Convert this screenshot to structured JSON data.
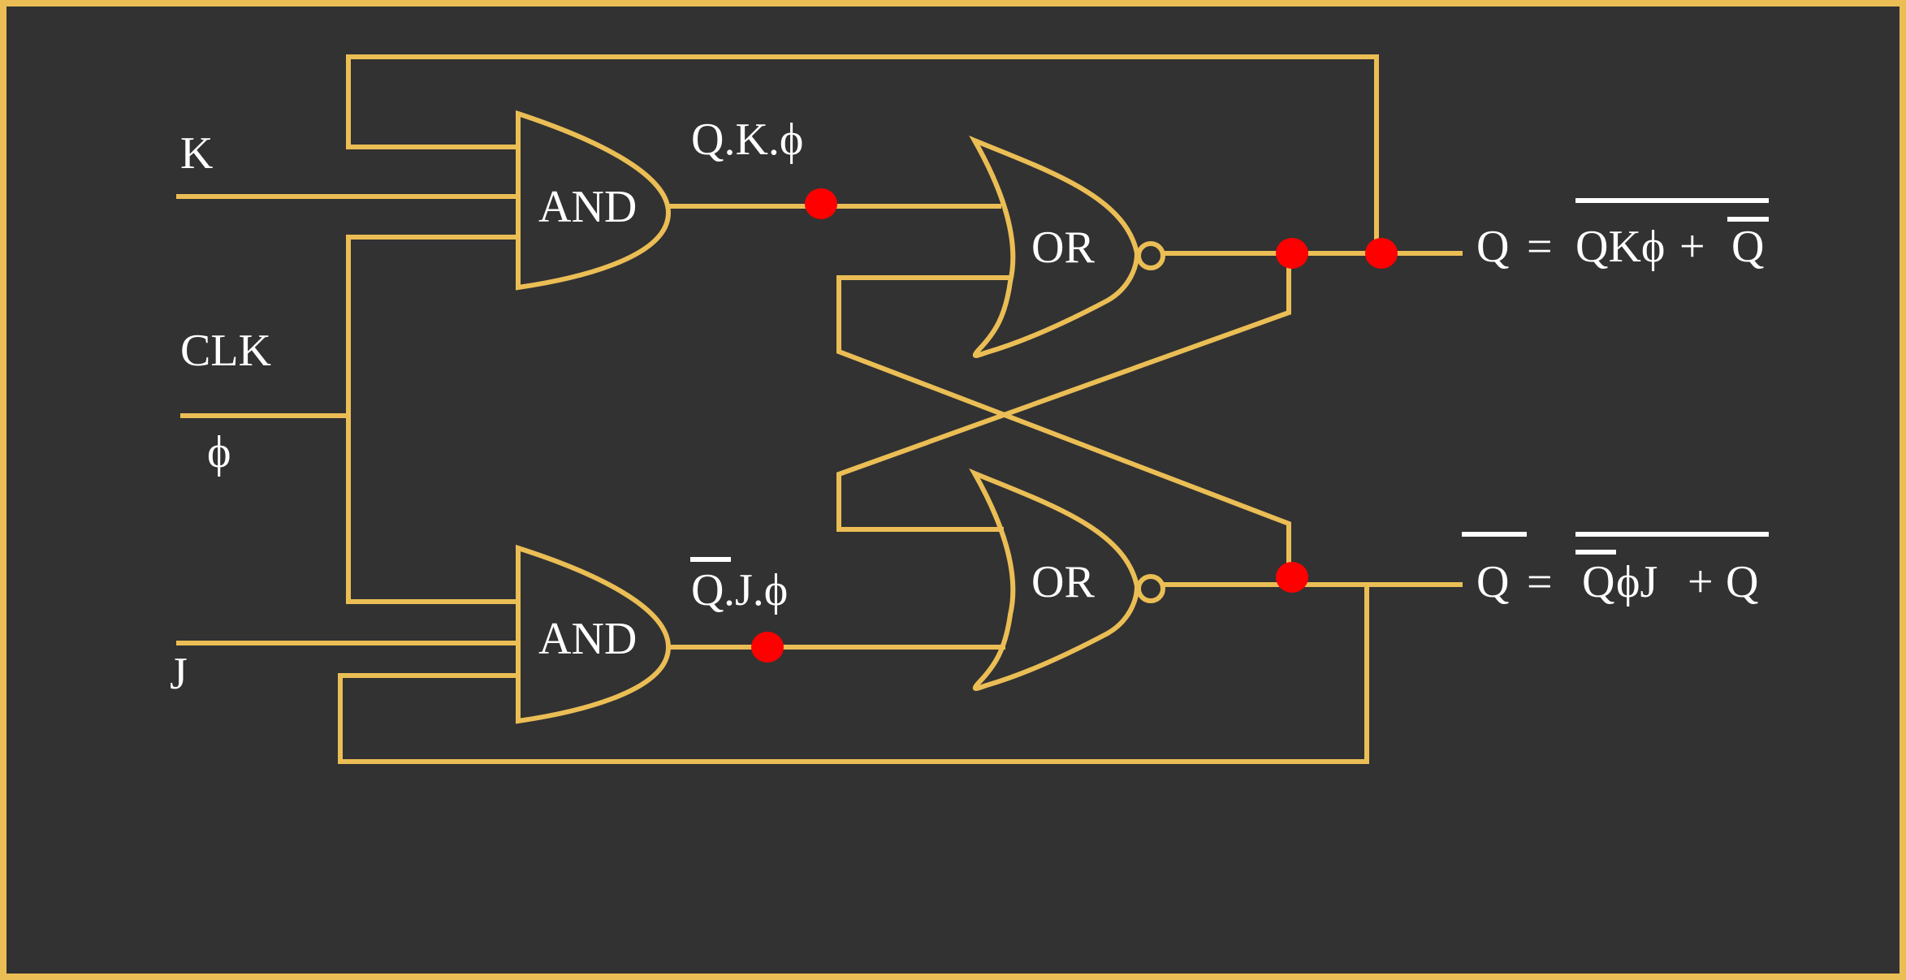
{
  "colors": {
    "background": "#323232",
    "wire": "#EBBE55",
    "probe": "#FF0000",
    "text": "#FFFFFF"
  },
  "inputs": {
    "k": "K",
    "clk": "CLK",
    "phi": "ϕ",
    "j": "J"
  },
  "gates": {
    "and_top": "AND",
    "and_bottom": "AND",
    "or_top": "OR",
    "or_bottom": "OR"
  },
  "signals": {
    "top_and_out": "Q.K.ϕ",
    "bottom_and_out_q": "Q",
    "bottom_and_out_rest": ".J.ϕ"
  },
  "equations": {
    "q_top": {
      "lhs": "Q",
      "equals": "=",
      "term1": "QKϕ",
      "plus": "+",
      "term2": "Q"
    },
    "q_bottom": {
      "lhs": "Q",
      "equals": "=",
      "term1_q": "Q",
      "term1_rest": "ϕJ",
      "plus": "+",
      "term2": "Q"
    }
  },
  "icons": {
    "inversion_bubble": "not-bubble-icon",
    "probe_point": "probe-dot-icon"
  }
}
